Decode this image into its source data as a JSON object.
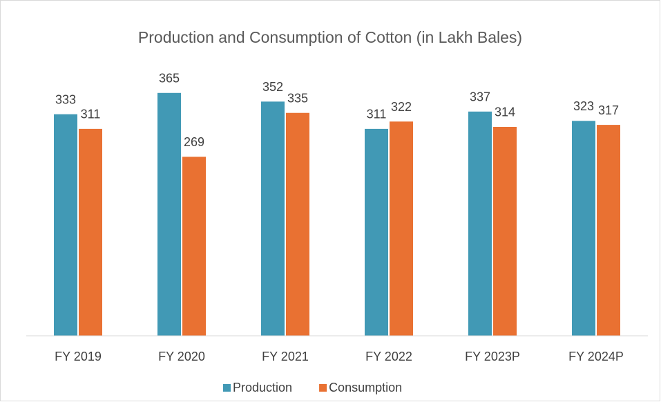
{
  "chart_data": {
    "type": "bar",
    "title": "Production and Consumption of Cotton (in Lakh Bales)",
    "categories": [
      "FY 2019",
      "FY 2020",
      "FY 2021",
      "FY 2022",
      "FY 2023P",
      "FY 2024P"
    ],
    "series": [
      {
        "name": "Production",
        "color": "#4199b5",
        "values": [
          333,
          365,
          352,
          311,
          337,
          323
        ]
      },
      {
        "name": "Consumption",
        "color": "#e97132",
        "values": [
          311,
          269,
          335,
          322,
          314,
          317
        ]
      }
    ],
    "ylim": [
      0,
      400
    ],
    "grid": false,
    "legend": "bottom"
  }
}
